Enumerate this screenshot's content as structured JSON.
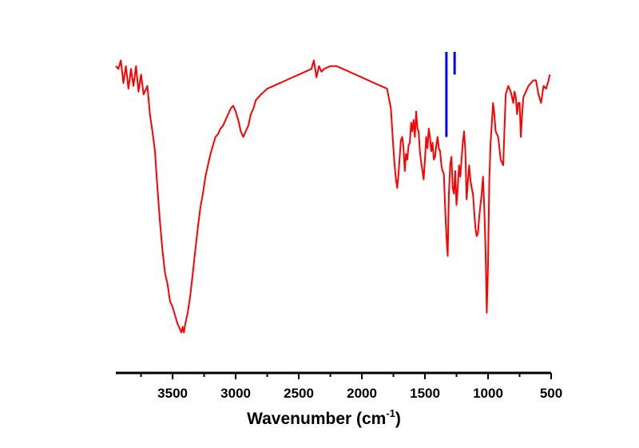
{
  "chart_data": {
    "type": "line",
    "xlabel": "Wavenumber (cm",
    "xlabel_sup": "-1",
    "xlabel_close": ")",
    "xlim": [
      3950,
      500
    ],
    "x_reversed": true,
    "x_ticks_major": [
      {
        "value": 3500,
        "label": "3500"
      },
      {
        "value": 3000,
        "label": "3000"
      },
      {
        "value": 2500,
        "label": "2500"
      },
      {
        "value": 2000,
        "label": "2000"
      },
      {
        "value": 1500,
        "label": "1500"
      },
      {
        "value": 1000,
        "label": "1000"
      },
      {
        "value": 500,
        "label": "500"
      }
    ],
    "x_ticks_minor": [
      3750,
      3250,
      2750,
      2250,
      1750,
      1250,
      750
    ],
    "y_axis_shown": false,
    "ylim": [
      0,
      100
    ],
    "grid": false,
    "series": [
      {
        "color": "#ff0000",
        "x": [
          3950,
          3930,
          3910,
          3890,
          3870,
          3850,
          3830,
          3810,
          3790,
          3770,
          3750,
          3730,
          3700,
          3680,
          3660,
          3640,
          3620,
          3600,
          3580,
          3560,
          3540,
          3520,
          3500,
          3480,
          3460,
          3440,
          3430,
          3420,
          3410,
          3400,
          3380,
          3360,
          3340,
          3320,
          3300,
          3280,
          3260,
          3240,
          3220,
          3200,
          3180,
          3160,
          3140,
          3120,
          3100,
          3080,
          3060,
          3040,
          3020,
          3000,
          2980,
          2960,
          2940,
          2920,
          2900,
          2880,
          2860,
          2840,
          2800,
          2750,
          2700,
          2650,
          2600,
          2550,
          2500,
          2450,
          2400,
          2380,
          2360,
          2340,
          2320,
          2300,
          2250,
          2200,
          2150,
          2100,
          2050,
          2000,
          1950,
          1900,
          1850,
          1800,
          1770,
          1750,
          1740,
          1730,
          1720,
          1710,
          1700,
          1690,
          1680,
          1670,
          1660,
          1650,
          1640,
          1630,
          1620,
          1610,
          1600,
          1590,
          1580,
          1570,
          1560,
          1550,
          1540,
          1530,
          1520,
          1510,
          1500,
          1490,
          1480,
          1470,
          1460,
          1450,
          1440,
          1430,
          1420,
          1410,
          1400,
          1390,
          1380,
          1370,
          1360,
          1350,
          1340,
          1330,
          1320,
          1310,
          1300,
          1290,
          1280,
          1270,
          1260,
          1250,
          1240,
          1230,
          1220,
          1210,
          1200,
          1190,
          1180,
          1170,
          1160,
          1150,
          1140,
          1130,
          1120,
          1110,
          1100,
          1090,
          1080,
          1070,
          1060,
          1050,
          1040,
          1030,
          1020,
          1010,
          1000,
          990,
          980,
          970,
          960,
          950,
          940,
          920,
          900,
          880,
          860,
          840,
          820,
          800,
          790,
          780,
          770,
          760,
          750,
          740,
          730,
          720,
          700,
          680,
          660,
          640,
          620,
          600,
          580,
          560,
          540,
          520,
          510
        ],
        "y": [
          95,
          94,
          97,
          89,
          95,
          87,
          94,
          88,
          95,
          86,
          92,
          85,
          88,
          78,
          72,
          65,
          52,
          40,
          30,
          22,
          18,
          12,
          10,
          7,
          4,
          2,
          1,
          3,
          1,
          4,
          8,
          14,
          22,
          30,
          38,
          45,
          50,
          56,
          60,
          64,
          67,
          70,
          71,
          73,
          74,
          76,
          78,
          80,
          81,
          79,
          76,
          72,
          70,
          72,
          74,
          78,
          80,
          83,
          85,
          87,
          88,
          89,
          90,
          91,
          92,
          93,
          94,
          97,
          91,
          95,
          93,
          94,
          95,
          95,
          94,
          93,
          92,
          91,
          90,
          89,
          88,
          87,
          80,
          66,
          60,
          55,
          52,
          57,
          63,
          69,
          70,
          66,
          58,
          64,
          62,
          67,
          68,
          75,
          72,
          76,
          70,
          79,
          73,
          72,
          65,
          61,
          58,
          55,
          62,
          70,
          66,
          73,
          70,
          65,
          68,
          62,
          63,
          67,
          70,
          66,
          65,
          60,
          58,
          57,
          45,
          35,
          28,
          50,
          60,
          63,
          52,
          50,
          58,
          46,
          52,
          60,
          56,
          62,
          68,
          72,
          65,
          48,
          54,
          60,
          55,
          52,
          50,
          44,
          38,
          35,
          36,
          42,
          46,
          50,
          56,
          45,
          30,
          8,
          25,
          55,
          68,
          75,
          82,
          78,
          72,
          70,
          62,
          60,
          85,
          88,
          86,
          82,
          86,
          84,
          78,
          82,
          82,
          70,
          78,
          84,
          86,
          88,
          89,
          90,
          90,
          85,
          82,
          88,
          87,
          90,
          92
        ],
        "line_width": 2
      }
    ],
    "reference_peaks": {
      "color": "#0000ff",
      "marks": [
        {
          "x": 1330,
          "y_top": 100,
          "y_bottom": 70
        },
        {
          "x": 1265,
          "y_top": 100,
          "y_bottom": 92
        }
      ]
    }
  }
}
